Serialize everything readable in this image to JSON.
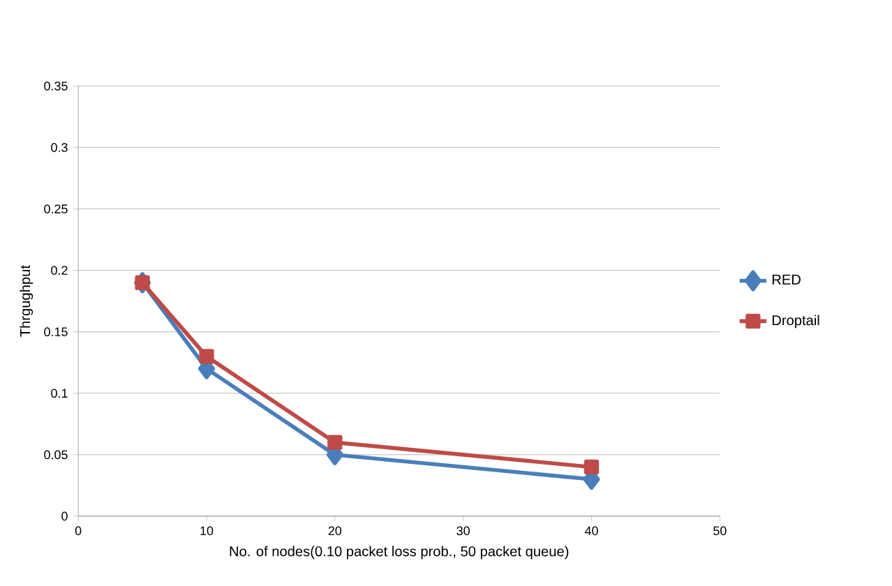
{
  "chart_data": {
    "type": "line",
    "xlabel": "No. of  nodes(0.10 packet loss prob., 50 packet queue)",
    "ylabel": "Thrgughput",
    "x": [
      5,
      10,
      20,
      40
    ],
    "series": [
      {
        "name": "RED",
        "color": "#4a7ebb",
        "marker": "diamond",
        "values": [
          0.19,
          0.12,
          0.05,
          0.03
        ]
      },
      {
        "name": "Droptail",
        "color": "#be4b48",
        "marker": "square",
        "values": [
          0.19,
          0.13,
          0.06,
          0.04
        ]
      }
    ],
    "xlim": [
      0,
      50
    ],
    "xticks": [
      0,
      10,
      20,
      30,
      40,
      50
    ],
    "ylim": [
      0,
      0.35
    ],
    "yticks": [
      0,
      0.05,
      0.1,
      0.15,
      0.2,
      0.25,
      0.3,
      0.35
    ],
    "grid": "y",
    "legend": "right",
    "line_style": "solid"
  }
}
